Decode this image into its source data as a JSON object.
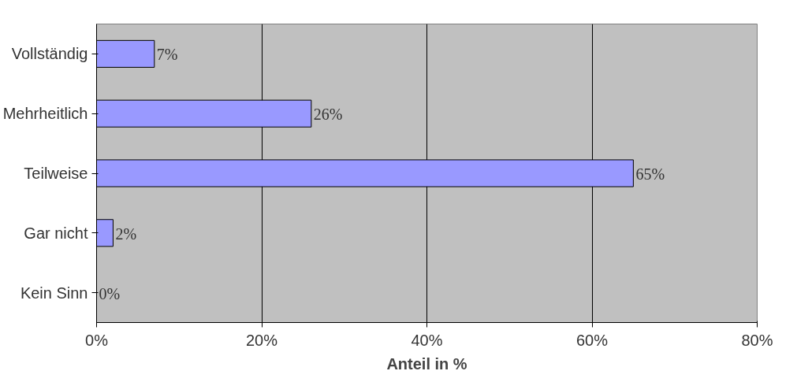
{
  "chart_data": {
    "type": "bar",
    "orientation": "horizontal",
    "xlabel": "Anteil in %",
    "categories": [
      "Vollständig",
      "Mehrheitlich",
      "Teilweise",
      "Gar nicht",
      "Kein Sinn"
    ],
    "values": [
      7,
      26,
      65,
      2,
      0
    ],
    "value_labels": [
      "7%",
      "26%",
      "65%",
      "2%",
      "0%"
    ],
    "color": "#9999ff",
    "xlim": [
      0,
      80
    ],
    "xticks": [
      {
        "value": 0,
        "label": "0%"
      },
      {
        "value": 20,
        "label": "20%"
      },
      {
        "value": 40,
        "label": "40%"
      },
      {
        "value": 60,
        "label": "60%"
      },
      {
        "value": 80,
        "label": "80%"
      }
    ],
    "grid": "x"
  }
}
